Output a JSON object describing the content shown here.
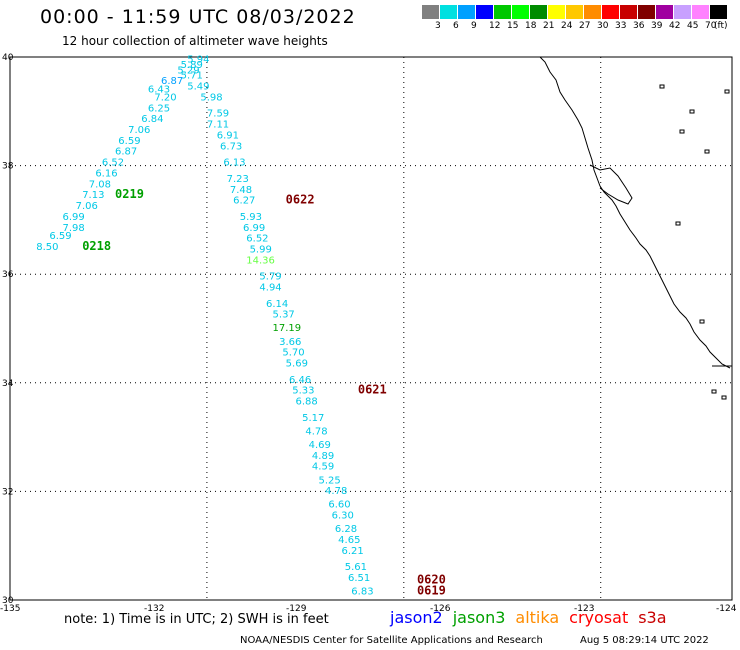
{
  "header": {
    "title": "00:00 - 11:59 UTC 08/03/2022",
    "subtitle": "12 hour collection of altimeter wave heights"
  },
  "legend": {
    "unit": "(ft)",
    "labels": [
      "3",
      "6",
      "9",
      "12",
      "15",
      "18",
      "21",
      "24",
      "27",
      "30",
      "33",
      "36",
      "39",
      "42",
      "45",
      "70"
    ],
    "colors": [
      "#808080",
      "#00e0e0",
      "#00a0ff",
      "#0000ff",
      "#00c800",
      "#00ff00",
      "#008c00",
      "#ffff00",
      "#ffc800",
      "#ff8c00",
      "#ff0000",
      "#c80000",
      "#800000",
      "#a000a0",
      "#c8a0ff",
      "#ff82ff",
      "#000000"
    ]
  },
  "map_data": {
    "lon_range": [
      -135,
      -124
    ],
    "lat_range": [
      30,
      40
    ],
    "x_ticks": [
      "-135",
      "-132",
      "-129",
      "-126",
      "-123",
      "-124"
    ],
    "y_ticks": [
      "40",
      "38",
      "36",
      "34",
      "32",
      "30"
    ],
    "track_colors": {
      "cyan": "#00c8e6",
      "light_blue": "#00a0ff",
      "lime": "#66ff44",
      "green": "#00a000",
      "dark_red": "#800000"
    },
    "tracks": [
      {
        "name": "track-a",
        "points": [
          {
            "v": "5.94",
            "lon": -132.3,
            "lat": 39.9,
            "c": "cyan"
          },
          {
            "v": "5.89",
            "lon": -132.4,
            "lat": 39.8,
            "c": "cyan"
          },
          {
            "v": "5.29",
            "lon": -132.45,
            "lat": 39.7,
            "c": "cyan"
          },
          {
            "v": "5.71",
            "lon": -132.4,
            "lat": 39.6,
            "c": "cyan"
          },
          {
            "v": "5.49",
            "lon": -132.3,
            "lat": 39.4,
            "c": "cyan"
          },
          {
            "v": "5.98",
            "lon": -132.1,
            "lat": 39.2,
            "c": "cyan"
          },
          {
            "v": "7.59",
            "lon": -132.0,
            "lat": 38.9,
            "c": "cyan"
          },
          {
            "v": "7.11",
            "lon": -132.0,
            "lat": 38.7,
            "c": "cyan"
          },
          {
            "v": "6.91",
            "lon": -131.85,
            "lat": 38.5,
            "c": "cyan"
          },
          {
            "v": "6.73",
            "lon": -131.8,
            "lat": 38.3,
            "c": "cyan"
          },
          {
            "v": "6.13",
            "lon": -131.75,
            "lat": 38.0,
            "c": "cyan"
          },
          {
            "v": "7.23",
            "lon": -131.7,
            "lat": 37.7,
            "c": "cyan"
          },
          {
            "v": "7.48",
            "lon": -131.65,
            "lat": 37.5,
            "c": "cyan"
          },
          {
            "v": "6.27",
            "lon": -131.6,
            "lat": 37.3,
            "c": "cyan"
          },
          {
            "v": "5.93",
            "lon": -131.5,
            "lat": 37.0,
            "c": "cyan"
          },
          {
            "v": "6.99",
            "lon": -131.45,
            "lat": 36.8,
            "c": "cyan"
          },
          {
            "v": "6.52",
            "lon": -131.4,
            "lat": 36.6,
            "c": "cyan"
          },
          {
            "v": "5.99",
            "lon": -131.35,
            "lat": 36.4,
            "c": "cyan"
          },
          {
            "v": "14.36",
            "lon": -131.4,
            "lat": 36.2,
            "c": "lime"
          },
          {
            "v": "5.79",
            "lon": -131.2,
            "lat": 35.9,
            "c": "cyan"
          },
          {
            "v": "4.94",
            "lon": -131.2,
            "lat": 35.7,
            "c": "cyan"
          },
          {
            "v": "6.14",
            "lon": -131.1,
            "lat": 35.4,
            "c": "cyan"
          },
          {
            "v": "5.37",
            "lon": -131.0,
            "lat": 35.2,
            "c": "cyan"
          },
          {
            "v": "17.19",
            "lon": -131.0,
            "lat": 34.95,
            "c": "green"
          },
          {
            "v": "3.66",
            "lon": -130.9,
            "lat": 34.7,
            "c": "cyan"
          },
          {
            "v": "5.70",
            "lon": -130.85,
            "lat": 34.5,
            "c": "cyan"
          },
          {
            "v": "5.69",
            "lon": -130.8,
            "lat": 34.3,
            "c": "cyan"
          },
          {
            "v": "6.46",
            "lon": -130.75,
            "lat": 34.0,
            "c": "cyan"
          },
          {
            "v": "5.33",
            "lon": -130.7,
            "lat": 33.8,
            "c": "cyan"
          },
          {
            "v": "6.88",
            "lon": -130.65,
            "lat": 33.6,
            "c": "cyan"
          },
          {
            "v": "5.17",
            "lon": -130.55,
            "lat": 33.3,
            "c": "cyan"
          },
          {
            "v": "4.78",
            "lon": -130.5,
            "lat": 33.05,
            "c": "cyan"
          },
          {
            "v": "4.69",
            "lon": -130.45,
            "lat": 32.8,
            "c": "cyan"
          },
          {
            "v": "4.89",
            "lon": -130.4,
            "lat": 32.6,
            "c": "cyan"
          },
          {
            "v": "4.59",
            "lon": -130.4,
            "lat": 32.4,
            "c": "cyan"
          },
          {
            "v": "5.25",
            "lon": -130.3,
            "lat": 32.15,
            "c": "cyan"
          },
          {
            "v": "4.78",
            "lon": -130.2,
            "lat": 31.95,
            "c": "cyan"
          },
          {
            "v": "6.60",
            "lon": -130.15,
            "lat": 31.7,
            "c": "cyan"
          },
          {
            "v": "6.30",
            "lon": -130.1,
            "lat": 31.5,
            "c": "cyan"
          },
          {
            "v": "6.28",
            "lon": -130.05,
            "lat": 31.25,
            "c": "cyan"
          },
          {
            "v": "4.65",
            "lon": -130.0,
            "lat": 31.05,
            "c": "cyan"
          },
          {
            "v": "6.21",
            "lon": -129.95,
            "lat": 30.85,
            "c": "cyan"
          },
          {
            "v": "5.61",
            "lon": -129.9,
            "lat": 30.55,
            "c": "cyan"
          },
          {
            "v": "6.51",
            "lon": -129.85,
            "lat": 30.35,
            "c": "cyan"
          },
          {
            "v": "6.83",
            "lon": -129.8,
            "lat": 30.1,
            "c": "cyan"
          }
        ]
      },
      {
        "name": "track-b",
        "points": [
          {
            "v": "6.87",
            "lon": -132.7,
            "lat": 39.5,
            "c": "light_blue"
          },
          {
            "v": "6.43",
            "lon": -132.9,
            "lat": 39.35,
            "c": "cyan"
          },
          {
            "v": "7.20",
            "lon": -132.8,
            "lat": 39.2,
            "c": "cyan"
          },
          {
            "v": "6.25",
            "lon": -132.9,
            "lat": 39.0,
            "c": "cyan"
          },
          {
            "v": "6.84",
            "lon": -133.0,
            "lat": 38.8,
            "c": "cyan"
          },
          {
            "v": "7.06",
            "lon": -133.2,
            "lat": 38.6,
            "c": "cyan"
          },
          {
            "v": "6.59",
            "lon": -133.35,
            "lat": 38.4,
            "c": "cyan"
          },
          {
            "v": "6.87",
            "lon": -133.4,
            "lat": 38.2,
            "c": "cyan"
          },
          {
            "v": "6.52",
            "lon": -133.6,
            "lat": 38.0,
            "c": "cyan"
          },
          {
            "v": "6.16",
            "lon": -133.7,
            "lat": 37.8,
            "c": "cyan"
          },
          {
            "v": "7.08",
            "lon": -133.8,
            "lat": 37.6,
            "c": "cyan"
          },
          {
            "v": "7.13",
            "lon": -133.9,
            "lat": 37.4,
            "c": "cyan"
          },
          {
            "v": "7.06",
            "lon": -134.0,
            "lat": 37.2,
            "c": "cyan"
          },
          {
            "v": "6.99",
            "lon": -134.2,
            "lat": 37.0,
            "c": "cyan"
          },
          {
            "v": "7.98",
            "lon": -134.2,
            "lat": 36.8,
            "c": "cyan"
          },
          {
            "v": "6.59",
            "lon": -134.4,
            "lat": 36.65,
            "c": "cyan"
          },
          {
            "v": "8.50",
            "lon": -134.6,
            "lat": 36.45,
            "c": "cyan"
          }
        ]
      }
    ],
    "time_labels": [
      {
        "t": "0219",
        "lon": -133.4,
        "lat": 37.4,
        "c": "green"
      },
      {
        "t": "0218",
        "lon": -133.9,
        "lat": 36.45,
        "c": "green"
      },
      {
        "t": "0622",
        "lon": -130.8,
        "lat": 37.3,
        "c": "dark_red"
      },
      {
        "t": "0621",
        "lon": -129.7,
        "lat": 33.8,
        "c": "dark_red"
      },
      {
        "t": "0620",
        "lon": -128.8,
        "lat": 30.3,
        "c": "dark_red"
      },
      {
        "t": "0619",
        "lon": -128.8,
        "lat": 30.1,
        "c": "dark_red"
      }
    ]
  },
  "footer": {
    "note": "note: 1) Time is in UTC; 2) SWH is in feet",
    "satellites": [
      {
        "name": "jason2",
        "color": "#0000ff"
      },
      {
        "name": "jason3",
        "color": "#00a000"
      },
      {
        "name": "altika",
        "color": "#ff8c00"
      },
      {
        "name": "cryosat",
        "color": "#ff0000"
      },
      {
        "name": "s3a",
        "color": "#c80000"
      }
    ],
    "credit": "NOAA/NESDIS Center for Satellite Applications and Research",
    "timestamp": "Aug  5 08:29:14 UTC 2022"
  }
}
